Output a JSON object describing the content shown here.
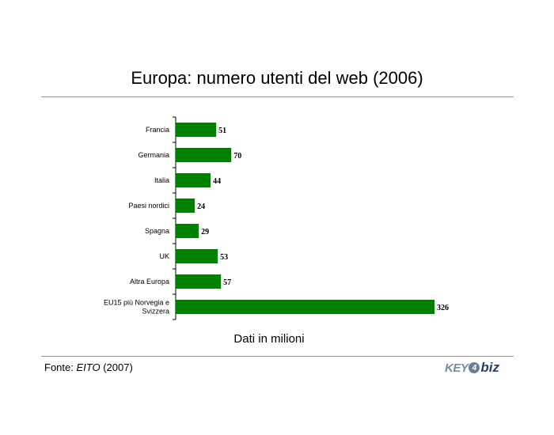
{
  "title": "Europa: numero utenti del web (2006)",
  "source": {
    "prefix": "Fonte: ",
    "name": "EITO",
    "suffix": " (2007)"
  },
  "logo": {
    "part1": "KEY",
    "part2": "4",
    "part3": "biz"
  },
  "colors": {
    "bar": "#008000",
    "axis": "#000000",
    "rule": "#999999"
  },
  "chart_data": {
    "type": "bar",
    "orientation": "horizontal",
    "title": "Europa: numero utenti del web (2006)",
    "xlabel": "Dati in milioni",
    "ylabel": "",
    "categories": [
      "Francia",
      "Germania",
      "Italia",
      "Paesi nordici",
      "Spagna",
      "UK",
      "Altra Europa",
      "EU15 più Norvegia e Svizzera"
    ],
    "values": [
      51,
      70,
      44,
      24,
      29,
      53,
      57,
      326
    ],
    "xlim": [
      0,
      326
    ],
    "grid": false,
    "legend": "none"
  }
}
